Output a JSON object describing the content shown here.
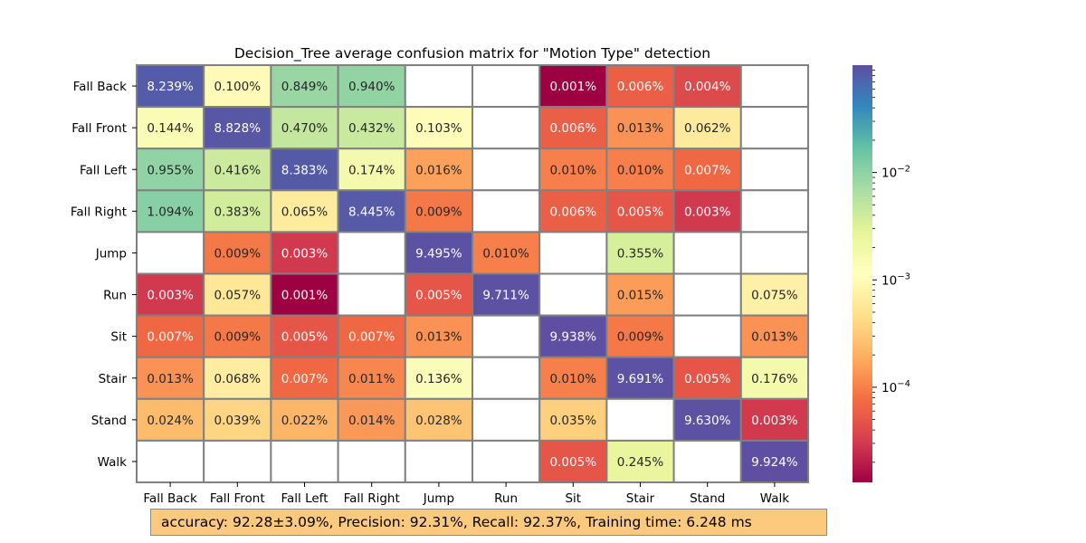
{
  "chart_data": {
    "type": "heatmap",
    "title": "Decision_Tree average confusion matrix for \"Motion Type\" detection",
    "rows": [
      "Fall Back",
      "Fall Front",
      "Fall Left",
      "Fall Right",
      "Jump",
      "Run",
      "Sit",
      "Stair",
      "Stand",
      "Walk"
    ],
    "columns": [
      "Fall Back",
      "Fall Front",
      "Fall Left",
      "Fall Right",
      "Jump",
      "Run",
      "Sit",
      "Stair",
      "Stand",
      "Walk"
    ],
    "values": [
      [
        8.239,
        0.1,
        0.849,
        0.94,
        null,
        null,
        0.001,
        0.006,
        0.004,
        null
      ],
      [
        0.144,
        8.828,
        0.47,
        0.432,
        0.103,
        null,
        0.006,
        0.013,
        0.062,
        null
      ],
      [
        0.955,
        0.416,
        8.383,
        0.174,
        0.016,
        null,
        0.01,
        0.01,
        0.007,
        null
      ],
      [
        1.094,
        0.383,
        0.065,
        8.445,
        0.009,
        null,
        0.006,
        0.005,
        0.003,
        null
      ],
      [
        null,
        0.009,
        0.003,
        null,
        9.495,
        0.01,
        null,
        0.355,
        null,
        null
      ],
      [
        0.003,
        0.057,
        0.001,
        null,
        0.005,
        9.711,
        null,
        0.015,
        null,
        0.075
      ],
      [
        0.007,
        0.009,
        0.005,
        0.007,
        0.013,
        null,
        9.938,
        0.009,
        null,
        0.013
      ],
      [
        0.013,
        0.068,
        0.007,
        0.011,
        0.136,
        null,
        0.01,
        9.691,
        0.005,
        0.176
      ],
      [
        0.024,
        0.039,
        0.022,
        0.014,
        0.028,
        null,
        0.035,
        null,
        9.63,
        0.003
      ],
      [
        null,
        null,
        null,
        null,
        null,
        null,
        0.005,
        0.245,
        null,
        9.924
      ]
    ],
    "cell_format": "{v}%",
    "colormap": "Spectral",
    "color_scale": "log",
    "colorbar": {
      "ticks": [
        0.01,
        0.001,
        0.0001
      ],
      "tick_labels": [
        "10−2",
        "10−3",
        "10−4"
      ],
      "vmin": 1.3e-05,
      "vmax": 0.1
    },
    "cell_border_color": "#808080",
    "empty_cell_color": "#ffffff"
  },
  "summary": {
    "text": "accuracy:  92.28±3.09%, Precision:  92.31%, Recall:  92.37%, Training time:  6.248 ms"
  }
}
